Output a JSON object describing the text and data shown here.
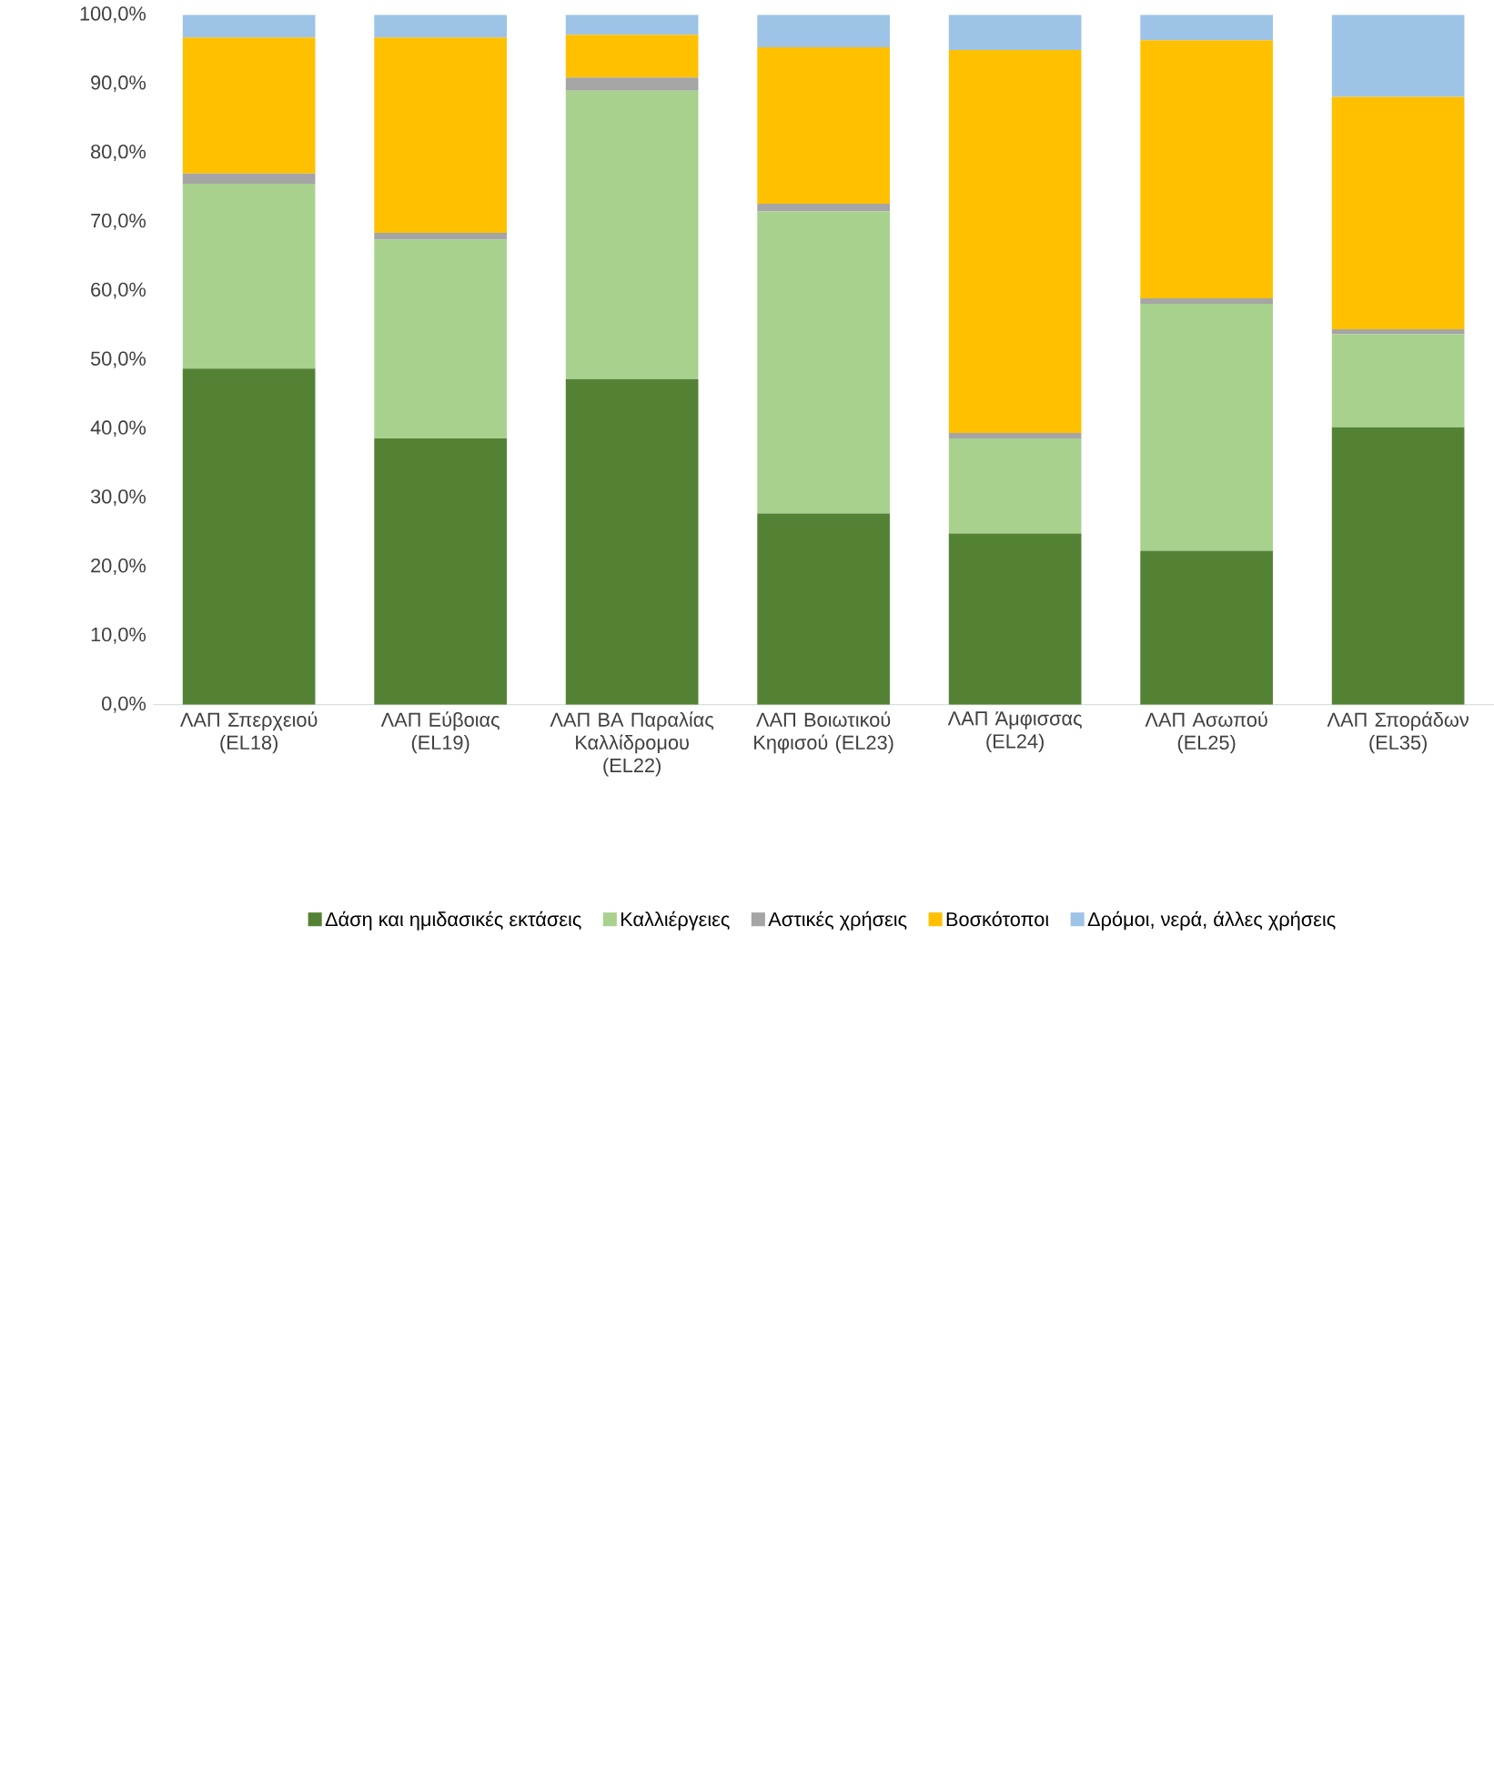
{
  "chart_data": {
    "type": "bar",
    "stacked": true,
    "categories": [
      "ΛΑΠ Σπερχειού (EL18)",
      "ΛΑΠ Εύβοιας (EL19)",
      "ΛΑΠ ΒΑ Παραλίας Καλλίδρομου (EL22)",
      "ΛΑΠ Βοιωτικού Κηφισού (EL23)",
      "ΛΑΠ Άμφισσας (EL24)",
      "ΛΑΠ Ασωπού (EL25)",
      "ΛΑΠ Σποράδων (EL35)"
    ],
    "series": [
      {
        "name": "Δάση και ημιδασικές εκτάσεις",
        "color": "#548235",
        "values": [
          48.7,
          38.6,
          47.2,
          27.7,
          24.8,
          22.3,
          40.2
        ]
      },
      {
        "name": "Καλλιέργειες",
        "color": "#a9d18e",
        "values": [
          26.8,
          28.8,
          41.8,
          43.8,
          13.8,
          35.8,
          13.5
        ]
      },
      {
        "name": "Αστικές χρήσεις",
        "color": "#a5a5a5",
        "values": [
          1.5,
          1.0,
          1.9,
          1.1,
          0.8,
          0.8,
          0.7
        ]
      },
      {
        "name": "Βοσκότοποι",
        "color": "#ffc000",
        "values": [
          19.7,
          28.3,
          6.2,
          22.7,
          55.5,
          37.4,
          33.7
        ]
      },
      {
        "name": "Δρόμοι, νερά, άλλες χρήσεις",
        "color": "#9dc3e6",
        "values": [
          3.3,
          3.3,
          2.9,
          4.7,
          5.1,
          3.7,
          11.9
        ]
      }
    ],
    "ylim": [
      0,
      100
    ],
    "yticks": [
      {
        "value": 0,
        "label": "0,0%"
      },
      {
        "value": 10,
        "label": "10,0%"
      },
      {
        "value": 20,
        "label": "20,0%"
      },
      {
        "value": 30,
        "label": "30,0%"
      },
      {
        "value": 40,
        "label": "40,0%"
      },
      {
        "value": 50,
        "label": "50,0%"
      },
      {
        "value": 60,
        "label": "60,0%"
      },
      {
        "value": 70,
        "label": "70,0%"
      },
      {
        "value": 80,
        "label": "80,0%"
      },
      {
        "value": 90,
        "label": "90,0%"
      },
      {
        "value": 100,
        "label": "100,0%"
      }
    ],
    "grid": false,
    "legend": "bottom"
  }
}
